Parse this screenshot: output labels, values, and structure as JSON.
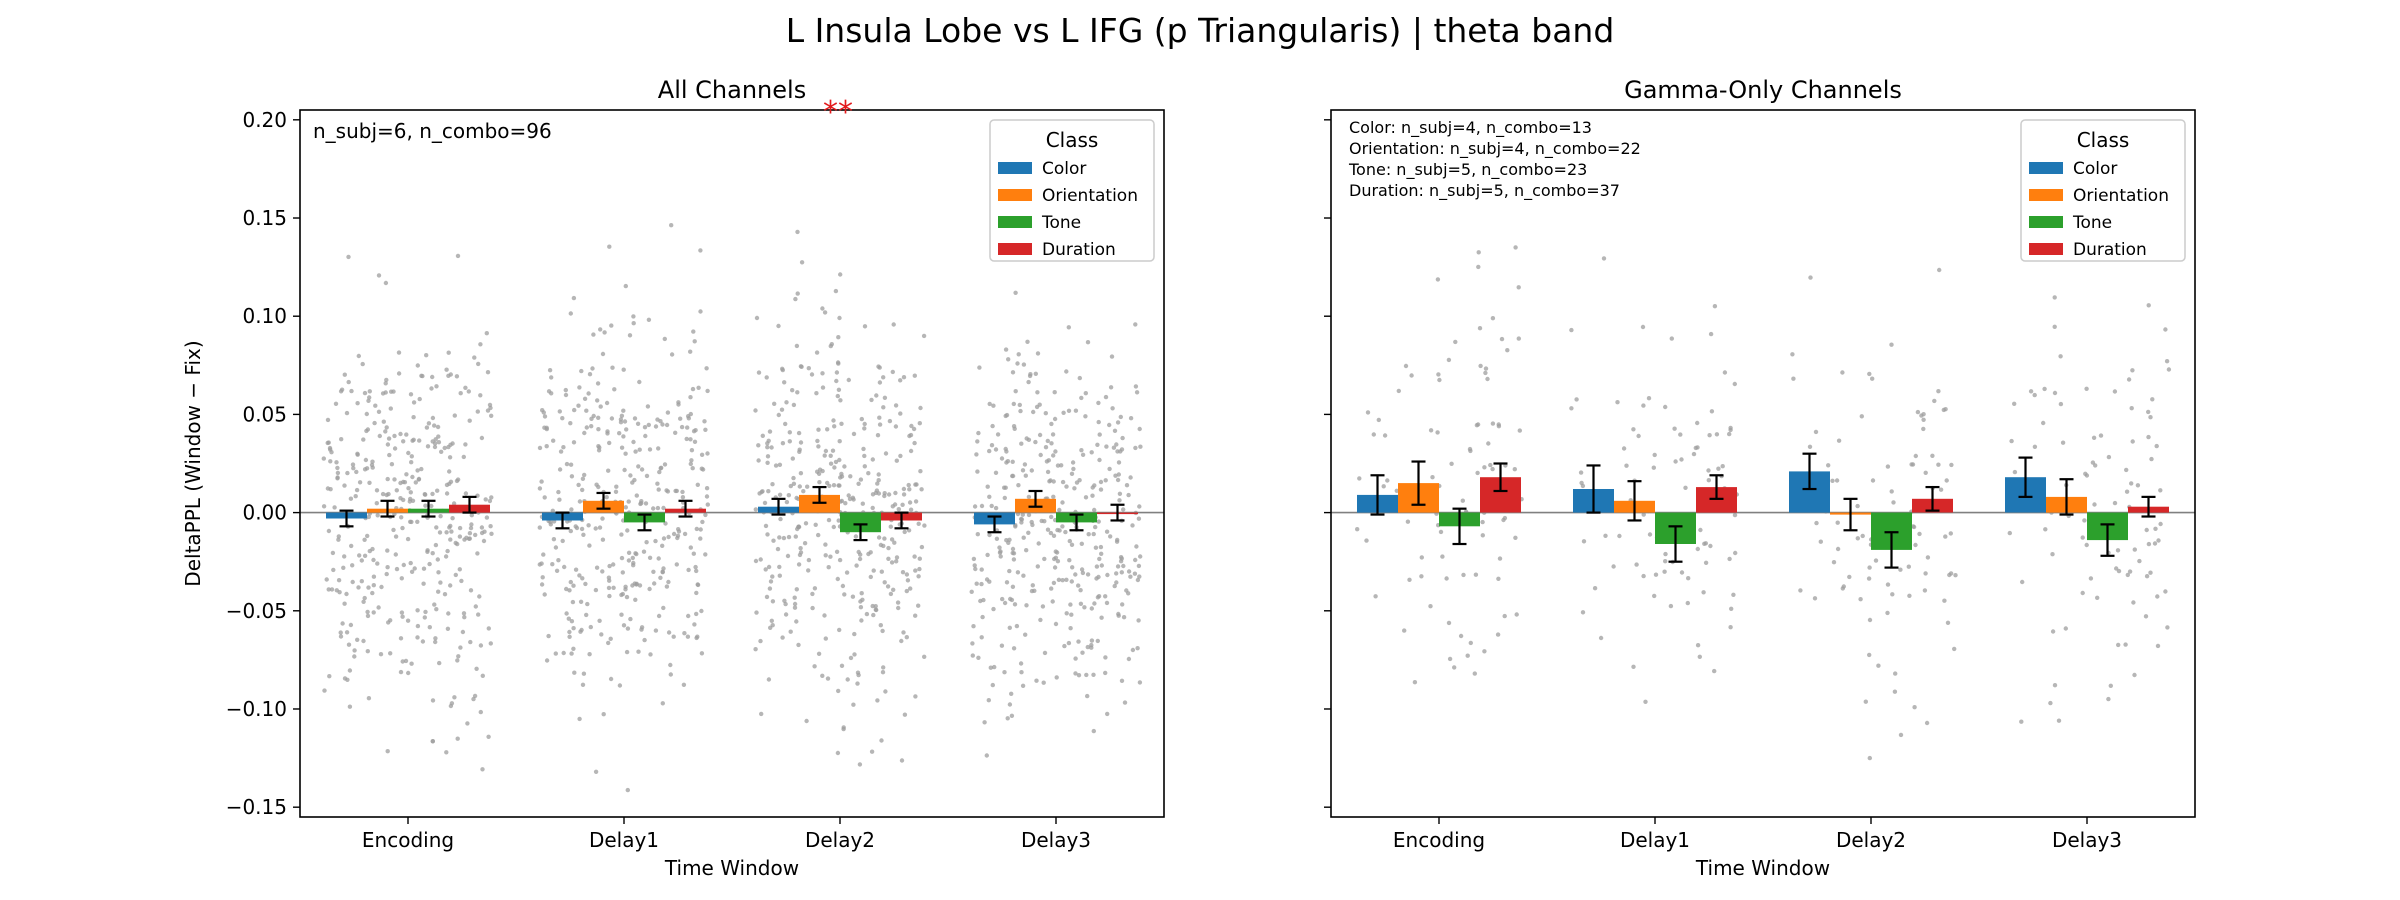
{
  "figure": {
    "suptitle": "L Insula Lobe vs L IFG (p Triangularis)  |  theta band"
  },
  "legend_title": "Class",
  "colors": {
    "Color": "#1f77b4",
    "Orientation": "#ff7f0e",
    "Tone": "#2ca02c",
    "Duration": "#d62728",
    "scatter": "#9e9e9e",
    "significance": "#e31a1c"
  },
  "chart_data": [
    {
      "type": "bar",
      "title": "All Channels",
      "significance": "**",
      "xlabel": "Time Window",
      "ylabel": "DeltaPPL (Window − Fix)",
      "categories": [
        "Encoding",
        "Delay1",
        "Delay2",
        "Delay3"
      ],
      "ylim": [
        -0.155,
        0.205
      ],
      "yticks": [
        -0.15,
        -0.1,
        -0.05,
        0.0,
        0.05,
        0.1,
        0.15,
        0.2
      ],
      "ytick_labels": [
        "−0.15",
        "−0.10",
        "−0.05",
        "0.00",
        "0.05",
        "0.10",
        "0.15",
        "0.20"
      ],
      "grid": false,
      "legend_position": "upper right",
      "annotation": [
        "n_subj=6, n_combo=96"
      ],
      "series": [
        {
          "name": "Color",
          "values": [
            -0.003,
            -0.004,
            0.003,
            -0.006
          ],
          "errors": [
            0.004,
            0.004,
            0.004,
            0.004
          ]
        },
        {
          "name": "Orientation",
          "values": [
            0.002,
            0.006,
            0.009,
            0.007
          ],
          "errors": [
            0.004,
            0.004,
            0.004,
            0.004
          ]
        },
        {
          "name": "Tone",
          "values": [
            0.002,
            -0.005,
            -0.01,
            -0.005
          ],
          "errors": [
            0.004,
            0.004,
            0.004,
            0.004
          ]
        },
        {
          "name": "Duration",
          "values": [
            0.004,
            0.002,
            -0.004,
            0.0
          ],
          "errors": [
            0.004,
            0.004,
            0.004,
            0.004
          ]
        }
      ]
    },
    {
      "type": "bar",
      "title": "Gamma-Only Channels",
      "xlabel": "Time Window",
      "ylabel": "",
      "categories": [
        "Encoding",
        "Delay1",
        "Delay2",
        "Delay3"
      ],
      "ylim": [
        -0.155,
        0.205
      ],
      "yticks": [
        -0.15,
        -0.1,
        -0.05,
        0.0,
        0.05,
        0.1,
        0.15,
        0.2
      ],
      "ytick_labels": [
        "",
        "",
        "",
        "",
        "",
        "",
        "",
        ""
      ],
      "grid": false,
      "legend_position": "upper right",
      "annotation": [
        "Color: n_subj=4, n_combo=13",
        "Orientation: n_subj=4, n_combo=22",
        "Tone: n_subj=5, n_combo=23",
        "Duration: n_subj=5, n_combo=37"
      ],
      "series": [
        {
          "name": "Color",
          "values": [
            0.009,
            0.012,
            0.021,
            0.018
          ],
          "errors": [
            0.01,
            0.012,
            0.009,
            0.01
          ]
        },
        {
          "name": "Orientation",
          "values": [
            0.015,
            0.006,
            -0.001,
            0.008
          ],
          "errors": [
            0.011,
            0.01,
            0.008,
            0.009
          ]
        },
        {
          "name": "Tone",
          "values": [
            -0.007,
            -0.016,
            -0.019,
            -0.014
          ],
          "errors": [
            0.009,
            0.009,
            0.009,
            0.008
          ]
        },
        {
          "name": "Duration",
          "values": [
            0.018,
            0.013,
            0.007,
            0.003
          ],
          "errors": [
            0.007,
            0.006,
            0.006,
            0.005
          ]
        }
      ]
    }
  ]
}
